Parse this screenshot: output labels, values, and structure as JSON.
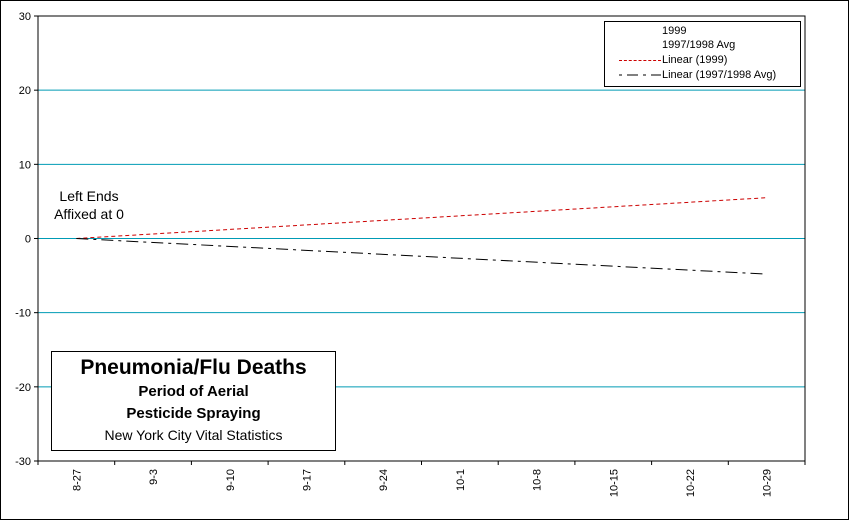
{
  "chart_data": {
    "type": "line",
    "title": "Pneumonia/Flu Deaths",
    "subtitle_lines": [
      "Period of Aerial",
      "Pesticide Spraying"
    ],
    "source": "New York City Vital Statistics",
    "annotation_lines": [
      "Left Ends",
      "Affixed at 0"
    ],
    "categories": [
      "8-27",
      "9-3",
      "9-10",
      "9-17",
      "9-24",
      "10-1",
      "10-8",
      "10-15",
      "10-22",
      "10-29"
    ],
    "ylim": [
      -30,
      30
    ],
    "yticks": [
      30,
      20,
      10,
      0,
      -10,
      -20,
      -30
    ],
    "grid": true,
    "legend_position": "top-right",
    "legend": [
      "1999",
      "1997/1998 Avg",
      "Linear (1999)",
      "Linear (1997/1998 Avg)"
    ],
    "series": [
      {
        "name": "Linear (1999)",
        "color": "#cc0000",
        "dash": "dashed",
        "x": [
          "8-27",
          "10-29"
        ],
        "values": [
          0,
          5.5
        ]
      },
      {
        "name": "Linear (1997/1998 Avg)",
        "color": "#000000",
        "dash": "dash-dot",
        "x": [
          "8-27",
          "10-29"
        ],
        "values": [
          0,
          -4.8
        ]
      }
    ],
    "colors": {
      "gridline": "#009bb5",
      "axis": "#000000"
    }
  }
}
